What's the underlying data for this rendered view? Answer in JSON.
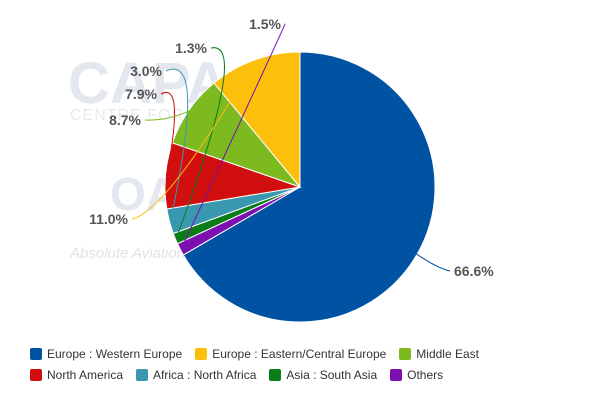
{
  "chart_data": {
    "type": "pie",
    "title": "",
    "slices": [
      {
        "name": "Europe : Western Europe",
        "value": 66.6,
        "label": "66.6%",
        "color": "#0052a3"
      },
      {
        "name": "Europe : Eastern/Central Europe",
        "value": 11.0,
        "label": "11.0%",
        "color": "#fbbf0c"
      },
      {
        "name": "Middle East",
        "value": 8.7,
        "label": "8.7%",
        "color": "#7cba1f"
      },
      {
        "name": "North America",
        "value": 7.9,
        "label": "7.9%",
        "color": "#d10f0f"
      },
      {
        "name": "Africa : North Africa",
        "value": 3.0,
        "label": "3.0%",
        "color": "#3a97b0"
      },
      {
        "name": "Asia : South Asia",
        "value": 1.3,
        "label": "1.3%",
        "color": "#0a7d19"
      },
      {
        "name": "Others",
        "value": 1.5,
        "label": "1.5%",
        "color": "#7b0fb0"
      }
    ],
    "legend_position": "bottom"
  },
  "watermark": {
    "logo_text": "CAPA",
    "subtitle": "CENTRE FOR AVIATION",
    "logo_mark": "OA",
    "tagline": "Absolute Aviation"
  }
}
